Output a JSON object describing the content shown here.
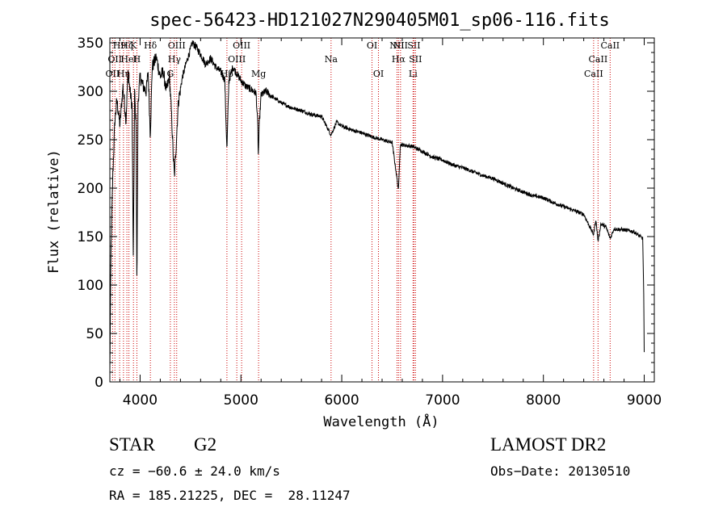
{
  "chart_data": {
    "type": "line",
    "title": "spec-56423-HD121027N290405M01_sp06-116.fits",
    "xlabel": "Wavelength (Å)",
    "ylabel": "Flux (relative)",
    "xlim": [
      3700,
      9100
    ],
    "ylim": [
      0,
      355
    ],
    "xticks": [
      4000,
      5000,
      6000,
      7000,
      8000,
      9000
    ],
    "yticks": [
      0,
      50,
      100,
      150,
      200,
      250,
      300,
      350
    ],
    "line_color": "#000000",
    "marker_color": "#cc0000",
    "spectrum_knots": [
      [
        3700,
        10
      ],
      [
        3712,
        140
      ],
      [
        3730,
        215
      ],
      [
        3750,
        270
      ],
      [
        3770,
        290
      ],
      [
        3800,
        265
      ],
      [
        3830,
        305
      ],
      [
        3860,
        270
      ],
      [
        3880,
        320
      ],
      [
        3900,
        300
      ],
      [
        3920,
        285
      ],
      [
        3933,
        120
      ],
      [
        3945,
        300
      ],
      [
        3960,
        265
      ],
      [
        3968,
        95
      ],
      [
        3980,
        290
      ],
      [
        4000,
        315
      ],
      [
        4030,
        305
      ],
      [
        4060,
        300
      ],
      [
        4080,
        320
      ],
      [
        4101,
        255
      ],
      [
        4120,
        325
      ],
      [
        4160,
        335
      ],
      [
        4200,
        315
      ],
      [
        4230,
        320
      ],
      [
        4260,
        300
      ],
      [
        4290,
        315
      ],
      [
        4310,
        280
      ],
      [
        4330,
        230
      ],
      [
        4340,
        212
      ],
      [
        4350,
        230
      ],
      [
        4380,
        290
      ],
      [
        4420,
        315
      ],
      [
        4460,
        330
      ],
      [
        4520,
        350
      ],
      [
        4560,
        345
      ],
      [
        4600,
        338
      ],
      [
        4650,
        328
      ],
      [
        4700,
        334
      ],
      [
        4750,
        325
      ],
      [
        4800,
        320
      ],
      [
        4840,
        312
      ],
      [
        4861,
        238
      ],
      [
        4880,
        310
      ],
      [
        4920,
        325
      ],
      [
        4960,
        318
      ],
      [
        5000,
        311
      ],
      [
        5050,
        305
      ],
      [
        5100,
        302
      ],
      [
        5150,
        298
      ],
      [
        5167,
        265
      ],
      [
        5172,
        232
      ],
      [
        5183,
        268
      ],
      [
        5200,
        296
      ],
      [
        5250,
        300
      ],
      [
        5300,
        295
      ],
      [
        5400,
        288
      ],
      [
        5500,
        283
      ],
      [
        5600,
        280
      ],
      [
        5700,
        276
      ],
      [
        5800,
        274
      ],
      [
        5893,
        255
      ],
      [
        5950,
        268
      ],
      [
        6000,
        264
      ],
      [
        6100,
        260
      ],
      [
        6200,
        257
      ],
      [
        6300,
        253
      ],
      [
        6400,
        250
      ],
      [
        6500,
        247
      ],
      [
        6563,
        198
      ],
      [
        6580,
        245
      ],
      [
        6700,
        243
      ],
      [
        6800,
        238
      ],
      [
        6900,
        232
      ],
      [
        7000,
        229
      ],
      [
        7100,
        224
      ],
      [
        7200,
        221
      ],
      [
        7300,
        217
      ],
      [
        7400,
        213
      ],
      [
        7500,
        210
      ],
      [
        7600,
        205
      ],
      [
        7700,
        200
      ],
      [
        7800,
        196
      ],
      [
        7900,
        192
      ],
      [
        8000,
        190
      ],
      [
        8100,
        185
      ],
      [
        8200,
        181
      ],
      [
        8300,
        177
      ],
      [
        8400,
        173
      ],
      [
        8498,
        152
      ],
      [
        8520,
        168
      ],
      [
        8542,
        145
      ],
      [
        8570,
        163
      ],
      [
        8620,
        160
      ],
      [
        8662,
        148
      ],
      [
        8700,
        158
      ],
      [
        8800,
        157
      ],
      [
        8900,
        155
      ],
      [
        8960,
        150
      ],
      [
        8985,
        148
      ],
      [
        8995,
        90
      ],
      [
        9000,
        30
      ]
    ],
    "line_markers": [
      {
        "wave": 3727,
        "label": "OII",
        "row": 3
      },
      {
        "wave": 3750,
        "label": "OII",
        "row": 2
      },
      {
        "wave": 3797,
        "label": "H9",
        "row": 1
      },
      {
        "wave": 3835,
        "label": "Hη",
        "row": 3
      },
      {
        "wave": 3869,
        "label": "Hζ",
        "row": 1
      },
      {
        "wave": 3889,
        "label": "HeI",
        "row": 2
      },
      {
        "wave": 3934,
        "label": "K",
        "row": 1
      },
      {
        "wave": 3968,
        "label": "H",
        "row": 2
      },
      {
        "wave": 4102,
        "label": "Hδ",
        "row": 1
      },
      {
        "wave": 4300,
        "label": "G",
        "row": 3
      },
      {
        "wave": 4340,
        "label": "Hγ",
        "row": 2
      },
      {
        "wave": 4363,
        "label": "OIII",
        "row": 1
      },
      {
        "wave": 4861,
        "label": "Hβ",
        "row": 3
      },
      {
        "wave": 4959,
        "label": "OIII",
        "row": 2
      },
      {
        "wave": 5007,
        "label": "OIII",
        "row": 1
      },
      {
        "wave": 5175,
        "label": "Mg",
        "row": 3
      },
      {
        "wave": 5894,
        "label": "Na",
        "row": 2
      },
      {
        "wave": 6300,
        "label": "OI",
        "row": 1
      },
      {
        "wave": 6364,
        "label": "OI",
        "row": 3
      },
      {
        "wave": 6548,
        "label": "NII",
        "row": 1
      },
      {
        "wave": 6563,
        "label": "Hα",
        "row": 2
      },
      {
        "wave": 6583,
        "label": "NII",
        "row": 1
      },
      {
        "wave": 6707,
        "label": "Li",
        "row": 3
      },
      {
        "wave": 6716,
        "label": "SII",
        "row": 1
      },
      {
        "wave": 6731,
        "label": "SII",
        "row": 2
      },
      {
        "wave": 8498,
        "label": "CaII",
        "row": 3
      },
      {
        "wave": 8542,
        "label": "CaII",
        "row": 2
      },
      {
        "wave": 8662,
        "label": "CaII",
        "row": 1
      }
    ]
  },
  "info": {
    "object_class": "STAR",
    "subclass": "G2",
    "survey": "LAMOST DR2",
    "cz": "cz = −60.6 ± 24.0 km/s",
    "obs_date": "Obs−Date: 20130510",
    "coords": "RA = 185.21225, DEC =  28.11247"
  }
}
